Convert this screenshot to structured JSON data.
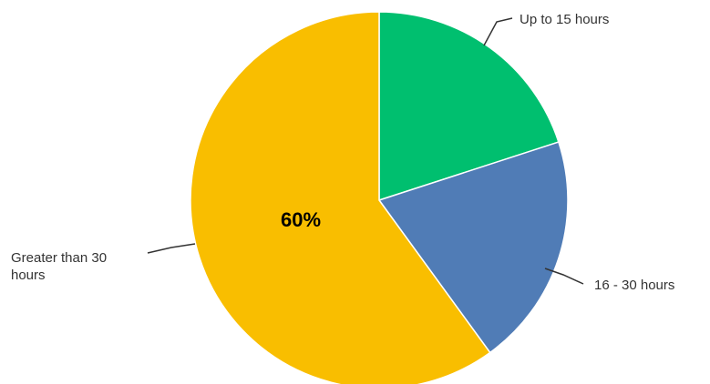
{
  "chart_data": {
    "type": "pie",
    "slices": [
      {
        "label": "Up to 15 hours",
        "value": 20,
        "color": "#00BF6F"
      },
      {
        "label": "16 - 30 hours",
        "value": 20,
        "color": "#507CB6"
      },
      {
        "label": "Greater than 30 hours",
        "label_lines": [
          "Greater than 30",
          "hours"
        ],
        "value": 60,
        "color": "#F9BE00",
        "data_label": "60%"
      }
    ],
    "start_angle_deg": 0,
    "direction": "clockwise",
    "legend": "callout labels",
    "title": ""
  }
}
